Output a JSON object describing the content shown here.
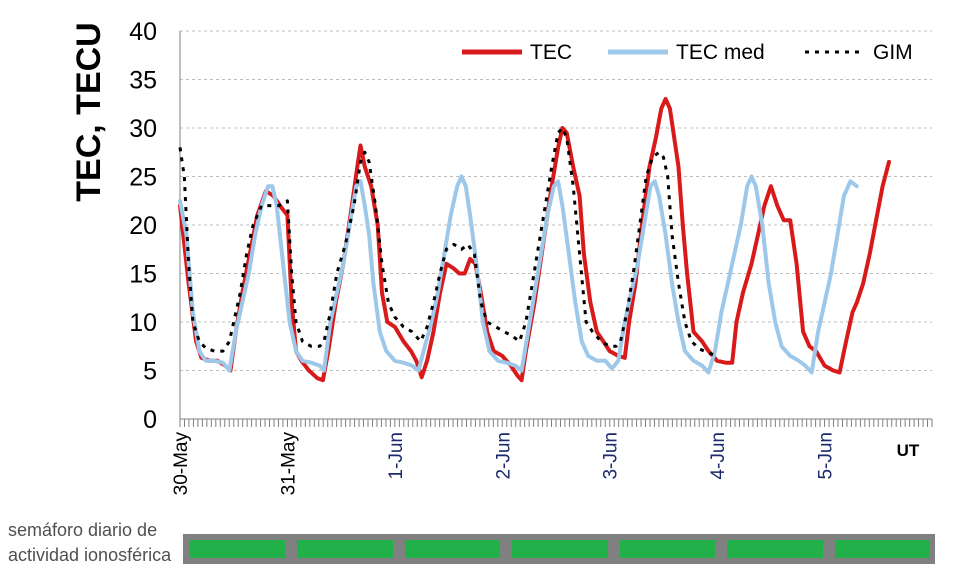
{
  "chart_data": {
    "type": "line",
    "ylabel": "TEC, TECU",
    "xlabel": "UT",
    "ylim": [
      0,
      40
    ],
    "yticks": [
      0,
      5,
      10,
      15,
      20,
      25,
      30,
      35,
      40
    ],
    "x_start_day": 0,
    "x_end_day": 7,
    "day_labels": [
      "30-May",
      "31-May",
      "1-Jun",
      "2-Jun",
      "3-Jun",
      "4-Jun",
      "5-Jun"
    ],
    "grid": true,
    "legend_position": "top-right",
    "series": [
      {
        "name": "TEC",
        "color": "#d81a1a",
        "points": [
          [
            0.0,
            22
          ],
          [
            0.08,
            14
          ],
          [
            0.15,
            8
          ],
          [
            0.2,
            6.3
          ],
          [
            0.28,
            6
          ],
          [
            0.35,
            6
          ],
          [
            0.42,
            5.5
          ],
          [
            0.47,
            5
          ],
          [
            0.52,
            9
          ],
          [
            0.58,
            13
          ],
          [
            0.65,
            17
          ],
          [
            0.72,
            21
          ],
          [
            0.8,
            23.5
          ],
          [
            0.87,
            23
          ],
          [
            0.93,
            22
          ],
          [
            1.0,
            21
          ],
          [
            1.04,
            12
          ],
          [
            1.08,
            7
          ],
          [
            1.13,
            6
          ],
          [
            1.2,
            5
          ],
          [
            1.28,
            4.2
          ],
          [
            1.33,
            4
          ],
          [
            1.38,
            7
          ],
          [
            1.45,
            12
          ],
          [
            1.52,
            16
          ],
          [
            1.6,
            22
          ],
          [
            1.65,
            26
          ],
          [
            1.68,
            28.2
          ],
          [
            1.72,
            26
          ],
          [
            1.78,
            24
          ],
          [
            1.84,
            20
          ],
          [
            1.88,
            13
          ],
          [
            1.93,
            10
          ],
          [
            2.0,
            9.5
          ],
          [
            2.08,
            8
          ],
          [
            2.15,
            7
          ],
          [
            2.2,
            6
          ],
          [
            2.25,
            4.3
          ],
          [
            2.3,
            6
          ],
          [
            2.36,
            9
          ],
          [
            2.42,
            13
          ],
          [
            2.48,
            16
          ],
          [
            2.55,
            15.5
          ],
          [
            2.6,
            15
          ],
          [
            2.65,
            15
          ],
          [
            2.7,
            16.5
          ],
          [
            2.75,
            16
          ],
          [
            2.8,
            13
          ],
          [
            2.86,
            9
          ],
          [
            2.92,
            7
          ],
          [
            3.0,
            6.5
          ],
          [
            3.08,
            5.5
          ],
          [
            3.14,
            4.5
          ],
          [
            3.18,
            4
          ],
          [
            3.22,
            7
          ],
          [
            3.3,
            12
          ],
          [
            3.38,
            18
          ],
          [
            3.46,
            24
          ],
          [
            3.52,
            28
          ],
          [
            3.56,
            30
          ],
          [
            3.6,
            29.5
          ],
          [
            3.66,
            26
          ],
          [
            3.72,
            23
          ],
          [
            3.76,
            17
          ],
          [
            3.82,
            12
          ],
          [
            3.88,
            9
          ],
          [
            3.94,
            8
          ],
          [
            4.0,
            7
          ],
          [
            4.08,
            6.5
          ],
          [
            4.14,
            6.3
          ],
          [
            4.18,
            10
          ],
          [
            4.24,
            14
          ],
          [
            4.3,
            20
          ],
          [
            4.37,
            26
          ],
          [
            4.43,
            29
          ],
          [
            4.48,
            32
          ],
          [
            4.52,
            33
          ],
          [
            4.56,
            32
          ],
          [
            4.6,
            29
          ],
          [
            4.64,
            26
          ],
          [
            4.68,
            20
          ],
          [
            4.72,
            15
          ],
          [
            4.78,
            9
          ],
          [
            4.86,
            8
          ],
          [
            4.92,
            7
          ],
          [
            5.0,
            6
          ],
          [
            5.08,
            5.8
          ],
          [
            5.14,
            5.8
          ],
          [
            5.18,
            10
          ],
          [
            5.24,
            13
          ],
          [
            5.32,
            16
          ],
          [
            5.38,
            19
          ],
          [
            5.44,
            22
          ],
          [
            5.5,
            24
          ],
          [
            5.56,
            22
          ],
          [
            5.62,
            20.5
          ],
          [
            5.68,
            20.5
          ],
          [
            5.74,
            16
          ],
          [
            5.8,
            9
          ],
          [
            5.86,
            7.5
          ],
          [
            5.92,
            7
          ],
          [
            6.0,
            5.5
          ],
          [
            6.08,
            5
          ],
          [
            6.14,
            4.8
          ],
          [
            6.2,
            8
          ],
          [
            6.26,
            11
          ],
          [
            6.3,
            12
          ],
          [
            6.36,
            14
          ],
          [
            6.42,
            17
          ],
          [
            6.48,
            20.5
          ],
          [
            6.54,
            24
          ],
          [
            6.6,
            26.5
          ]
        ]
      },
      {
        "name": "TEC med",
        "color": "#9dc8ea",
        "points": [
          [
            0.0,
            22.5
          ],
          [
            0.06,
            19
          ],
          [
            0.12,
            11
          ],
          [
            0.18,
            7
          ],
          [
            0.24,
            6
          ],
          [
            0.32,
            6
          ],
          [
            0.4,
            5.8
          ],
          [
            0.46,
            5
          ],
          [
            0.52,
            9
          ],
          [
            0.58,
            12
          ],
          [
            0.64,
            15
          ],
          [
            0.7,
            19
          ],
          [
            0.76,
            22
          ],
          [
            0.82,
            24
          ],
          [
            0.86,
            24
          ],
          [
            0.9,
            22
          ],
          [
            0.96,
            16
          ],
          [
            1.02,
            10
          ],
          [
            1.08,
            7
          ],
          [
            1.14,
            6
          ],
          [
            1.22,
            5.8
          ],
          [
            1.3,
            5.5
          ],
          [
            1.34,
            5
          ],
          [
            1.4,
            10
          ],
          [
            1.46,
            13
          ],
          [
            1.52,
            16
          ],
          [
            1.58,
            20
          ],
          [
            1.64,
            24
          ],
          [
            1.68,
            24.5
          ],
          [
            1.72,
            22
          ],
          [
            1.76,
            19
          ],
          [
            1.8,
            14
          ],
          [
            1.86,
            9
          ],
          [
            1.92,
            7
          ],
          [
            2.0,
            6
          ],
          [
            2.08,
            5.8
          ],
          [
            2.16,
            5.5
          ],
          [
            2.22,
            5
          ],
          [
            2.28,
            7.5
          ],
          [
            2.34,
            10
          ],
          [
            2.4,
            13
          ],
          [
            2.46,
            17
          ],
          [
            2.52,
            21
          ],
          [
            2.58,
            24
          ],
          [
            2.62,
            25
          ],
          [
            2.66,
            24
          ],
          [
            2.7,
            21
          ],
          [
            2.76,
            16
          ],
          [
            2.82,
            10
          ],
          [
            2.88,
            7
          ],
          [
            2.96,
            6
          ],
          [
            3.04,
            5.8
          ],
          [
            3.12,
            5.5
          ],
          [
            3.18,
            5
          ],
          [
            3.24,
            9
          ],
          [
            3.3,
            13
          ],
          [
            3.36,
            17
          ],
          [
            3.42,
            21
          ],
          [
            3.48,
            24
          ],
          [
            3.52,
            24.5
          ],
          [
            3.56,
            22
          ],
          [
            3.62,
            17
          ],
          [
            3.68,
            12
          ],
          [
            3.74,
            8
          ],
          [
            3.8,
            6.5
          ],
          [
            3.88,
            6
          ],
          [
            3.96,
            6
          ],
          [
            4.02,
            5.2
          ],
          [
            4.08,
            6
          ],
          [
            4.14,
            10
          ],
          [
            4.2,
            13
          ],
          [
            4.26,
            16
          ],
          [
            4.32,
            20
          ],
          [
            4.38,
            24
          ],
          [
            4.42,
            24.5
          ],
          [
            4.46,
            23
          ],
          [
            4.52,
            19
          ],
          [
            4.58,
            14
          ],
          [
            4.64,
            10
          ],
          [
            4.7,
            7
          ],
          [
            4.78,
            6
          ],
          [
            4.86,
            5.5
          ],
          [
            4.92,
            4.8
          ],
          [
            4.98,
            7
          ],
          [
            5.04,
            11
          ],
          [
            5.1,
            14
          ],
          [
            5.16,
            17
          ],
          [
            5.22,
            20
          ],
          [
            5.28,
            24
          ],
          [
            5.32,
            25
          ],
          [
            5.36,
            24
          ],
          [
            5.42,
            20
          ],
          [
            5.48,
            14
          ],
          [
            5.54,
            10
          ],
          [
            5.6,
            7.5
          ],
          [
            5.68,
            6.5
          ],
          [
            5.76,
            6
          ],
          [
            5.82,
            5.5
          ],
          [
            5.88,
            4.8
          ],
          [
            5.94,
            9
          ],
          [
            6.0,
            12
          ],
          [
            6.06,
            15
          ],
          [
            6.12,
            19
          ],
          [
            6.18,
            23
          ],
          [
            6.24,
            24.5
          ],
          [
            6.3,
            24
          ]
        ]
      },
      {
        "name": "GIM",
        "color": "#000000",
        "points": [
          [
            0.0,
            28
          ],
          [
            0.04,
            25
          ],
          [
            0.08,
            16
          ],
          [
            0.12,
            10
          ],
          [
            0.18,
            8
          ],
          [
            0.24,
            7.3
          ],
          [
            0.32,
            7
          ],
          [
            0.4,
            7
          ],
          [
            0.46,
            8
          ],
          [
            0.5,
            10
          ],
          [
            0.56,
            13
          ],
          [
            0.62,
            17
          ],
          [
            0.68,
            20
          ],
          [
            0.76,
            22
          ],
          [
            0.84,
            22
          ],
          [
            0.92,
            22
          ],
          [
            1.0,
            22.5
          ],
          [
            1.04,
            15
          ],
          [
            1.08,
            10
          ],
          [
            1.14,
            8
          ],
          [
            1.22,
            7.5
          ],
          [
            1.3,
            7.5
          ],
          [
            1.34,
            8
          ],
          [
            1.4,
            11
          ],
          [
            1.46,
            15
          ],
          [
            1.54,
            18
          ],
          [
            1.62,
            22
          ],
          [
            1.68,
            26.5
          ],
          [
            1.72,
            27.5
          ],
          [
            1.76,
            26.5
          ],
          [
            1.82,
            22
          ],
          [
            1.88,
            16
          ],
          [
            1.94,
            12
          ],
          [
            2.0,
            10.5
          ],
          [
            2.08,
            9.5
          ],
          [
            2.16,
            9
          ],
          [
            2.24,
            8
          ],
          [
            2.3,
            9.5
          ],
          [
            2.36,
            12
          ],
          [
            2.42,
            15
          ],
          [
            2.48,
            17.5
          ],
          [
            2.55,
            18
          ],
          [
            2.62,
            17.5
          ],
          [
            2.68,
            18
          ],
          [
            2.74,
            17
          ],
          [
            2.8,
            12
          ],
          [
            2.86,
            10
          ],
          [
            2.94,
            9.5
          ],
          [
            3.02,
            9
          ],
          [
            3.1,
            8.5
          ],
          [
            3.16,
            8
          ],
          [
            3.22,
            10
          ],
          [
            3.28,
            14
          ],
          [
            3.34,
            18
          ],
          [
            3.4,
            22
          ],
          [
            3.46,
            26
          ],
          [
            3.52,
            29.5
          ],
          [
            3.56,
            30
          ],
          [
            3.6,
            29
          ],
          [
            3.66,
            24
          ],
          [
            3.72,
            17
          ],
          [
            3.78,
            10
          ],
          [
            3.84,
            9
          ],
          [
            3.92,
            8
          ],
          [
            4.0,
            7.5
          ],
          [
            4.06,
            7.5
          ],
          [
            4.1,
            8
          ],
          [
            4.16,
            11
          ],
          [
            4.22,
            15
          ],
          [
            4.28,
            20
          ],
          [
            4.34,
            25
          ],
          [
            4.4,
            27
          ],
          [
            4.46,
            27.5
          ],
          [
            4.5,
            27
          ],
          [
            4.54,
            25
          ],
          [
            4.58,
            19
          ],
          [
            4.64,
            14
          ],
          [
            4.7,
            10
          ],
          [
            4.76,
            8
          ],
          [
            4.84,
            7.2
          ],
          [
            4.92,
            6.8
          ],
          [
            5.0,
            6.5
          ]
        ]
      }
    ]
  },
  "semaforo": {
    "label_line1": "semáforo diario de",
    "label_line2": "actividad ionosférica",
    "days": [
      {
        "status": "green",
        "color": "#22b04a"
      },
      {
        "status": "green",
        "color": "#22b04a"
      },
      {
        "status": "green",
        "color": "#22b04a"
      },
      {
        "status": "green",
        "color": "#22b04a"
      },
      {
        "status": "green",
        "color": "#22b04a"
      },
      {
        "status": "green",
        "color": "#22b04a"
      },
      {
        "status": "green",
        "color": "#22b04a"
      }
    ]
  }
}
